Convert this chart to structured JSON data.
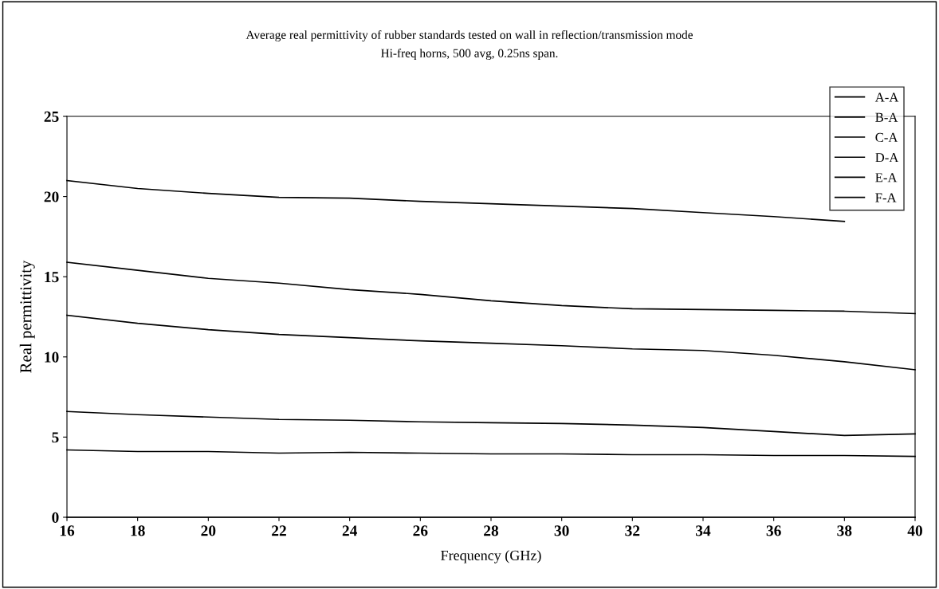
{
  "chart_data": {
    "type": "line",
    "title": "Average real permittivity of rubber standards tested on wall in reflection/transmission mode",
    "subtitle": "Hi-freq horns, 500 avg, 0.25ns span.",
    "xlabel": "Frequency (GHz)",
    "ylabel": "Real permittivity",
    "x": [
      16,
      18,
      20,
      22,
      24,
      26,
      28,
      30,
      32,
      34,
      36,
      38,
      40
    ],
    "series": [
      {
        "name": "A-A",
        "color": "#000000",
        "values": [
          21.0,
          20.5,
          20.2,
          19.95,
          19.9,
          19.7,
          19.55,
          19.4,
          19.25,
          19.0,
          18.75,
          18.45,
          null
        ]
      },
      {
        "name": "B-A",
        "color": "#000000",
        "values": [
          15.9,
          15.4,
          14.9,
          14.6,
          14.2,
          13.9,
          13.5,
          13.2,
          13.0,
          12.95,
          12.9,
          12.85,
          12.7
        ]
      },
      {
        "name": "C-A",
        "color": "#000000",
        "values": [
          12.6,
          12.1,
          11.7,
          11.4,
          11.2,
          11.0,
          10.85,
          10.7,
          10.5,
          10.4,
          10.1,
          9.7,
          9.2
        ]
      },
      {
        "name": "D-A",
        "color": "#000000",
        "values": [
          6.6,
          6.4,
          6.25,
          6.1,
          6.05,
          5.95,
          5.9,
          5.85,
          5.75,
          5.6,
          5.35,
          5.1,
          5.2
        ]
      },
      {
        "name": "E-A",
        "color": "#000000",
        "values": [
          4.2,
          4.1,
          4.1,
          4.0,
          4.05,
          4.0,
          3.95,
          3.95,
          3.9,
          3.9,
          3.85,
          3.85,
          3.8
        ]
      },
      {
        "name": "F-A",
        "color": "#000000",
        "values": [
          0,
          0,
          0,
          0,
          0,
          0,
          0,
          0,
          0,
          0,
          0,
          0,
          0
        ]
      }
    ],
    "xlim": [
      16,
      40
    ],
    "xticks": [
      16,
      18,
      20,
      22,
      24,
      26,
      28,
      30,
      32,
      34,
      36,
      38,
      40
    ],
    "ylim": [
      0,
      25
    ],
    "yticks": [
      0,
      5,
      10,
      15,
      20,
      25
    ],
    "grid": false,
    "legend": "top right",
    "marker": "none",
    "line_style": "solid"
  }
}
